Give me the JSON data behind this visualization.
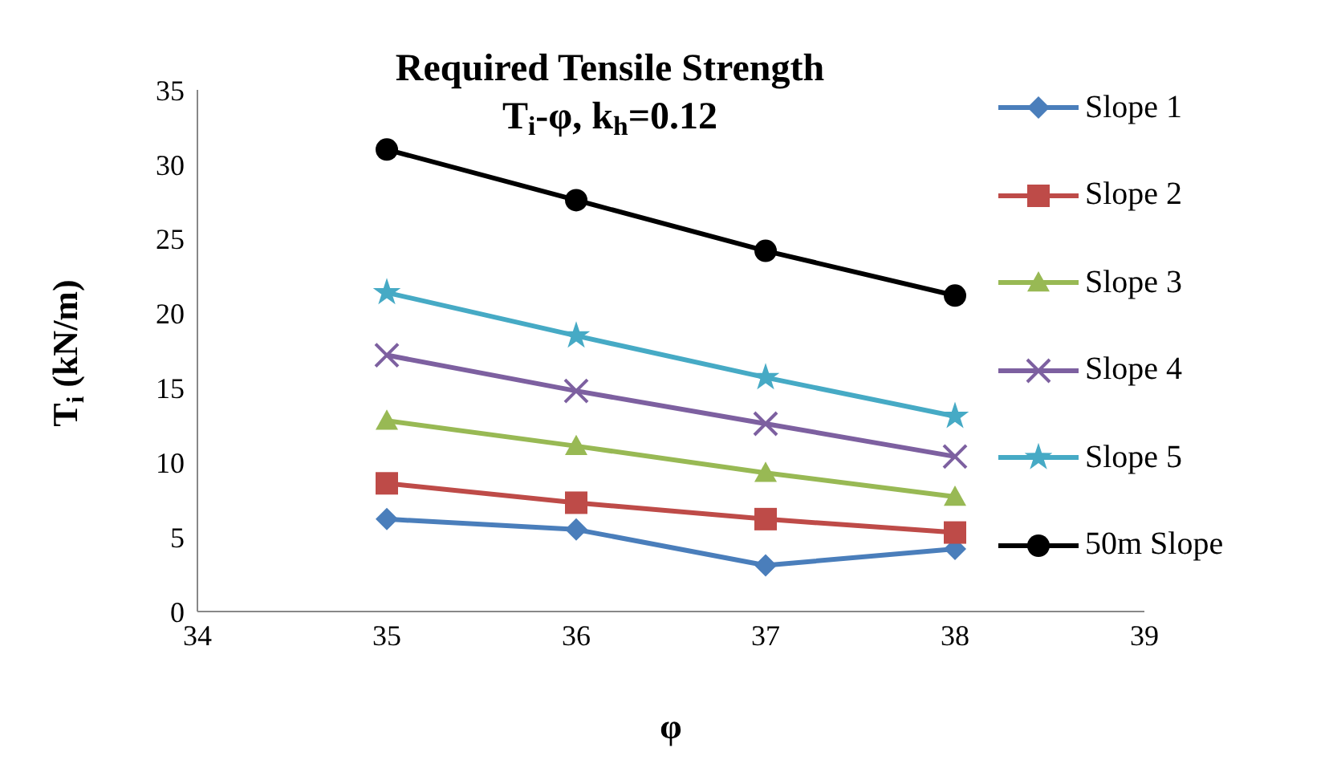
{
  "chart_data": {
    "type": "line",
    "title": "Required Tensile Strength\nT$_{i}$-φ, k$_{h}$=0.12",
    "xlabel": "φ",
    "ylabel": "T$_{i}$ (kN/m)",
    "x": [
      35,
      36,
      37,
      38
    ],
    "series": [
      {
        "name": "Slope 1",
        "color": "#4a7ebb",
        "marker": "diamond",
        "values": [
          6.2,
          5.5,
          3.1,
          4.2
        ]
      },
      {
        "name": "Slope 2",
        "color": "#be4b48",
        "marker": "square",
        "values": [
          8.6,
          7.3,
          6.2,
          5.3
        ]
      },
      {
        "name": "Slope 3",
        "color": "#98b954",
        "marker": "triangle",
        "values": [
          12.8,
          11.1,
          9.3,
          7.7
        ]
      },
      {
        "name": "Slope 4",
        "color": "#7d60a0",
        "marker": "cross",
        "values": [
          17.2,
          14.8,
          12.6,
          10.4
        ]
      },
      {
        "name": "Slope 5",
        "color": "#46aac5",
        "marker": "star",
        "values": [
          21.4,
          18.5,
          15.7,
          13.1
        ]
      },
      {
        "name": "50m Slope",
        "color": "#000000",
        "marker": "circle",
        "values": [
          31.0,
          27.6,
          24.2,
          21.2
        ]
      }
    ],
    "xlim": [
      34,
      39
    ],
    "xticks": [
      34,
      35,
      36,
      37,
      38,
      39
    ],
    "ylim": [
      0,
      35
    ],
    "yticks": [
      0,
      5,
      10,
      15,
      20,
      25,
      30,
      35
    ],
    "grid": false,
    "legend": "right"
  }
}
